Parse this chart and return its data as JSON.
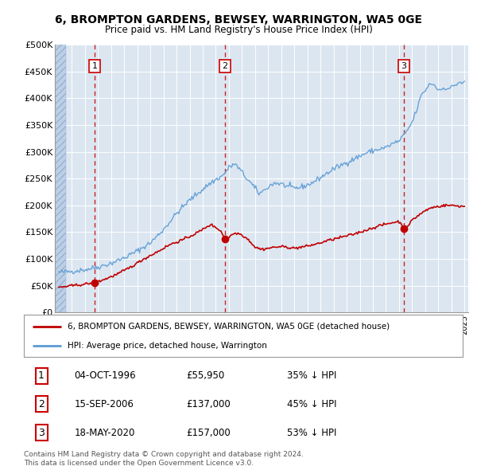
{
  "title_line1": "6, BROMPTON GARDENS, BEWSEY, WARRINGTON, WA5 0GE",
  "title_line2": "Price paid vs. HM Land Registry's House Price Index (HPI)",
  "ylabel_ticks": [
    "£0",
    "£50K",
    "£100K",
    "£150K",
    "£200K",
    "£250K",
    "£300K",
    "£350K",
    "£400K",
    "£450K",
    "£500K"
  ],
  "ylabel_values": [
    0,
    50000,
    100000,
    150000,
    200000,
    250000,
    300000,
    350000,
    400000,
    450000,
    500000
  ],
  "xlim": [
    1993.7,
    2025.3
  ],
  "ylim": [
    0,
    500000
  ],
  "sale_points": [
    {
      "year": 1996.75,
      "price": 55950,
      "label": "1"
    },
    {
      "year": 2006.7,
      "price": 137000,
      "label": "2"
    },
    {
      "year": 2020.37,
      "price": 157000,
      "label": "3"
    }
  ],
  "hpi_color": "#5b9bd5",
  "sale_color": "#c00000",
  "vline_color": "#c00000",
  "chart_bg": "#dce6f1",
  "hatch_color": "#b8cce4",
  "legend_entries": [
    "6, BROMPTON GARDENS, BEWSEY, WARRINGTON, WA5 0GE (detached house)",
    "HPI: Average price, detached house, Warrington"
  ],
  "table_rows": [
    [
      "1",
      "04-OCT-1996",
      "£55,950",
      "35% ↓ HPI"
    ],
    [
      "2",
      "15-SEP-2006",
      "£137,000",
      "45% ↓ HPI"
    ],
    [
      "3",
      "18-MAY-2020",
      "£157,000",
      "53% ↓ HPI"
    ]
  ],
  "footnote": "Contains HM Land Registry data © Crown copyright and database right 2024.\nThis data is licensed under the Open Government Licence v3.0.",
  "grid_color": "#ffffff"
}
